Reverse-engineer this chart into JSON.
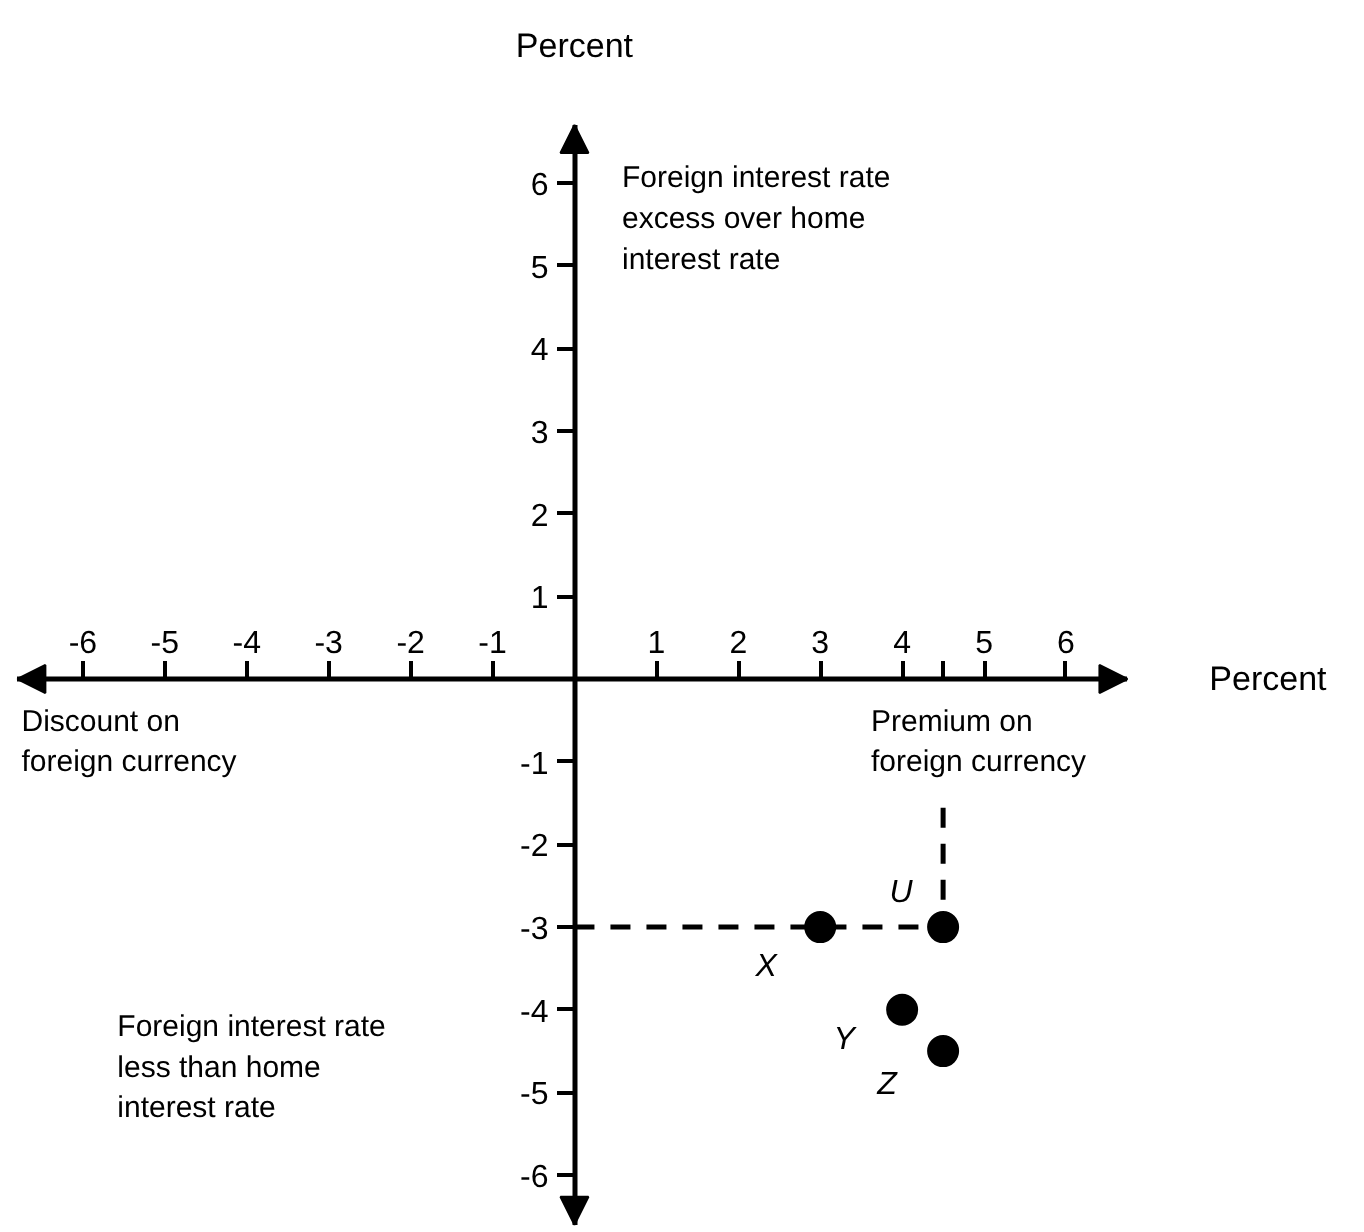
{
  "chart_data": {
    "type": "scatter",
    "xlabel": "Percent",
    "ylabel": "Percent",
    "annotations": [
      "Foreign interest rate\nexcess over home\ninterest rate",
      "Discount on\nforeign currency",
      "Premium on\nforeign currency",
      "Foreign interest rate\nless than home\ninterest rate"
    ],
    "series": [
      {
        "color": "#000000",
        "marker": "circle",
        "x": [
          3,
          4.5,
          4,
          4.5
        ],
        "values": [
          -3,
          -3,
          -4,
          -4.5
        ],
        "value_labels": [
          "X",
          "U",
          "Y",
          "Z"
        ]
      },
      {
        "type": "line",
        "color": "#000000",
        "line_style": "dashed",
        "marker": "none",
        "x": [
          0,
          4.5,
          4.5
        ],
        "values": [
          -3,
          -3,
          -1.5
        ]
      }
    ],
    "xlim": [
      -6.8,
      6.75
    ],
    "ylim": [
      -6.6,
      6.7
    ],
    "xticks": [
      -6,
      -5,
      -4,
      -3,
      -2,
      -1,
      1,
      2,
      3,
      4,
      5,
      6,
      {
        "value": 4.5,
        "label": null
      }
    ],
    "yticks": [
      -6,
      -5,
      -4,
      -3,
      -2,
      -1,
      1,
      2,
      3,
      4,
      5,
      6
    ],
    "grid": false
  }
}
